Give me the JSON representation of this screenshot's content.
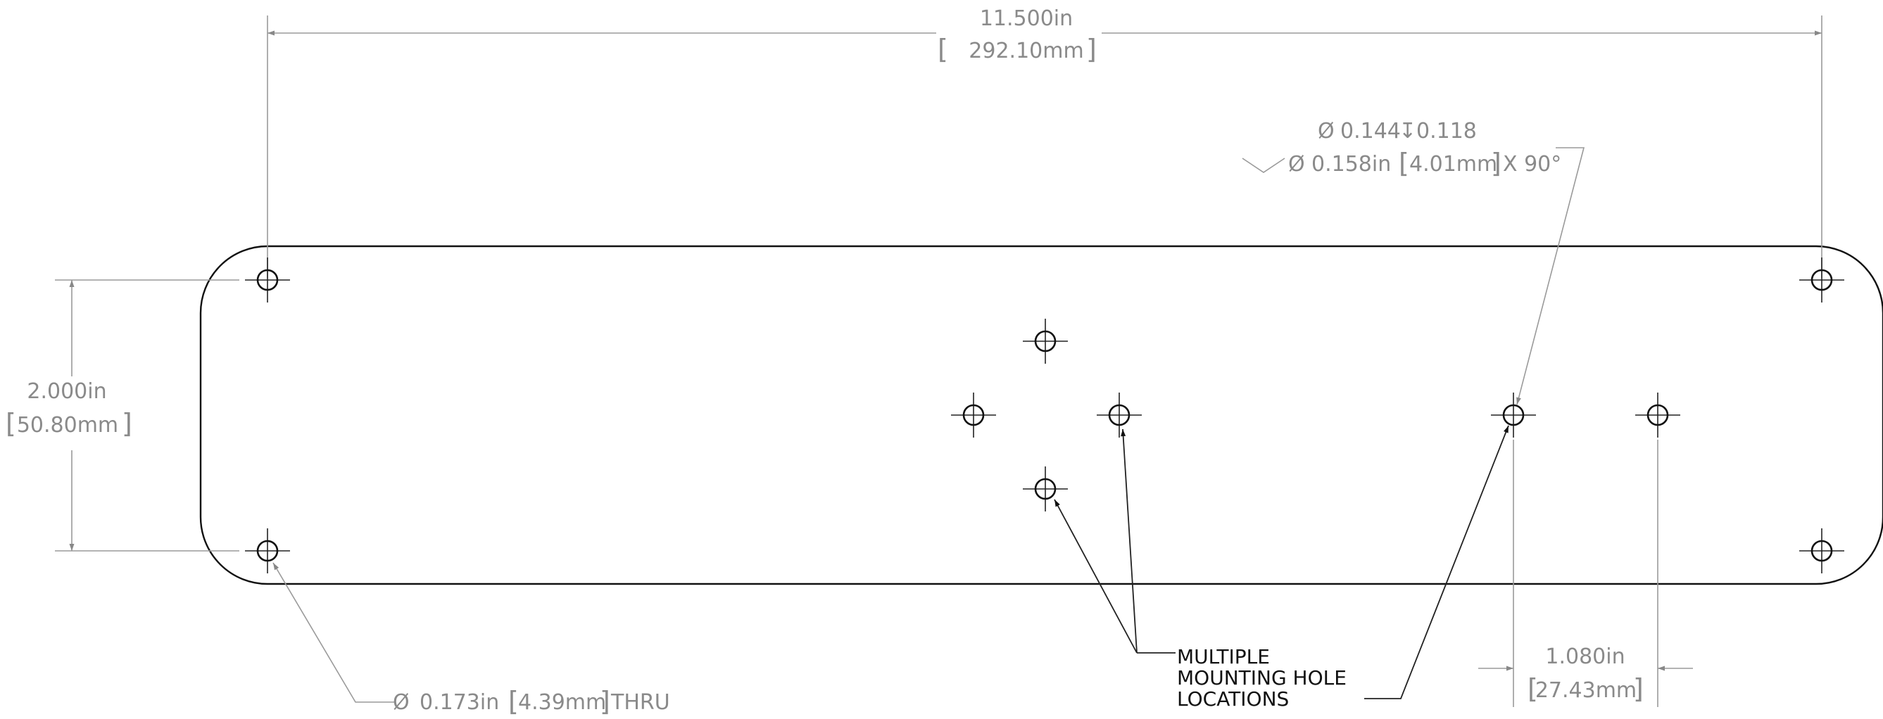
{
  "dimensions": {
    "overall_width": {
      "imperial": "11.500in",
      "metric": "292.10mm"
    },
    "hole_spacing_vertical": {
      "imperial": "2.000in",
      "metric": "50.80mm"
    },
    "hole_spacing_horizontal": {
      "imperial": "1.080in",
      "metric": "27.43mm"
    }
  },
  "callouts": {
    "corner_hole": {
      "diameter": "0.173in",
      "metric": "4.39mm",
      "suffix": "THRU"
    },
    "countersink_hole": {
      "line1_diameter": "0.144",
      "line1_depth": "0.118",
      "line2_diameter": "0.158in",
      "line2_metric": "4.01mm",
      "line2_angle": "X 90°"
    },
    "mounting_note": [
      "MULTIPLE",
      "MOUNTING HOLE",
      "LOCATIONS"
    ]
  },
  "symbols": {
    "diameter": "Ø",
    "depth": "↧",
    "countersink": "∨"
  }
}
